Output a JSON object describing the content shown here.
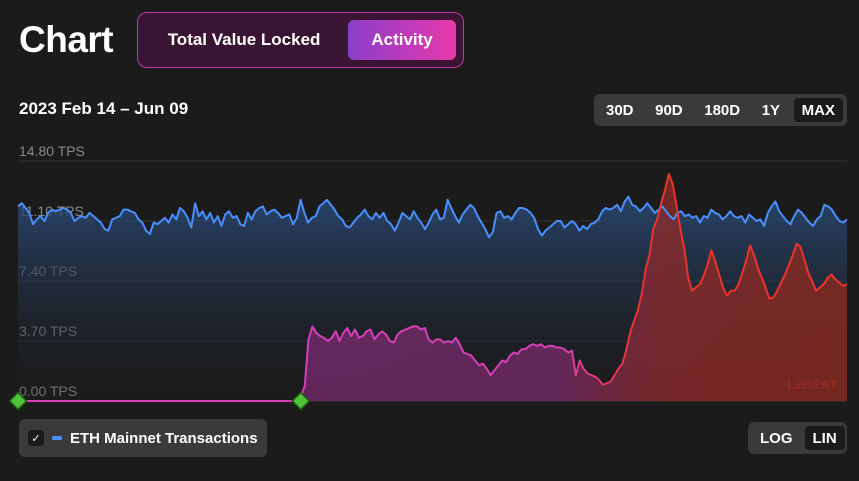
{
  "header": {
    "title": "Chart",
    "modes": {
      "tvl_label": "Total Value Locked",
      "activity_label": "Activity",
      "active": "activity"
    }
  },
  "range": {
    "date_label": "2023 Feb 14 – Jun 09",
    "options": [
      "30D",
      "90D",
      "180D",
      "1Y",
      "MAX"
    ],
    "active": "MAX"
  },
  "legend": {
    "label": "ETH Mainnet Transactions",
    "checked": true,
    "checkmark": "✓"
  },
  "scale": {
    "log_label": "LOG",
    "lin_label": "LIN",
    "active": "LIN"
  },
  "watermark": "L2BEAT",
  "colors": {
    "eth_line": "#4a8fff",
    "l2_line_start": "#d63fb8",
    "l2_line_end": "#e8342a",
    "accent": "#c0389a"
  },
  "chart_data": {
    "type": "area",
    "y_ticks": [
      "14.80 TPS",
      "11.10 TPS",
      "7.40 TPS",
      "3.70 TPS",
      "0.00 TPS"
    ],
    "ylim": [
      0,
      14.8
    ],
    "series": [
      {
        "name": "ETH Mainnet Transactions",
        "values": [
          12.0,
          12.2,
          11.9,
          11.6,
          10.9,
          11.2,
          11.4,
          11.1,
          11.6,
          11.8,
          11.7,
          11.8,
          11.9,
          11.8,
          11.6,
          11.1,
          11.3,
          11.4,
          11.3,
          11.6,
          11.4,
          11.2,
          11.0,
          10.6,
          10.5,
          11.2,
          11.3,
          11.4,
          11.8,
          11.8,
          11.7,
          11.6,
          11.2,
          11.0,
          10.5,
          10.3,
          11.0,
          10.9,
          11.1,
          11.3,
          11.0,
          11.5,
          11.2,
          11.9,
          11.7,
          11.3,
          10.7,
          12.2,
          11.4,
          11.7,
          11.2,
          11.6,
          11.0,
          11.4,
          10.8,
          11.5,
          11.7,
          11.3,
          11.4,
          10.9,
          10.8,
          11.6,
          11.2,
          11.7,
          11.9,
          12.0,
          11.5,
          11.7,
          11.8,
          11.6,
          11.3,
          11.4,
          11.5,
          10.9,
          11.3,
          12.4,
          11.6,
          11.0,
          11.3,
          11.4,
          12.0,
          12.2,
          12.4,
          12.1,
          11.8,
          11.4,
          11.2,
          10.8,
          10.7,
          11.0,
          11.3,
          11.5,
          11.8,
          11.4,
          11.2,
          11.6,
          11.3,
          11.6,
          11.1,
          10.9,
          10.5,
          11.0,
          11.6,
          11.4,
          11.2,
          11.7,
          11.3,
          11.0,
          10.6,
          11.0,
          11.5,
          11.8,
          11.2,
          11.3,
          12.4,
          11.9,
          11.4,
          11.0,
          11.5,
          11.8,
          12.1,
          11.9,
          11.4,
          11.0,
          10.6,
          10.1,
          10.4,
          11.6,
          11.7,
          11.3,
          11.4,
          11.2,
          11.6,
          11.9,
          11.9,
          11.8,
          11.6,
          11.3,
          10.6,
          10.2,
          10.5,
          10.7,
          10.9,
          11.1,
          11.1,
          10.7,
          10.9,
          11.1,
          10.9,
          10.5,
          10.8,
          10.6,
          10.9,
          11.0,
          11.2,
          11.7,
          11.9,
          11.8,
          11.9,
          12.1,
          11.7,
          12.3,
          12.6,
          12.1,
          12.0,
          11.7,
          11.9,
          12.2,
          11.9,
          11.6,
          11.8,
          12.0,
          11.7,
          11.4,
          11.2,
          11.6,
          11.7,
          11.4,
          11.5,
          11.3,
          11.4,
          11.0,
          11.4,
          11.3,
          11.8,
          11.6,
          11.5,
          11.2,
          11.4,
          11.7,
          11.4,
          11.3,
          11.4,
          11.0,
          11.5,
          11.3,
          11.1,
          11.2,
          10.8,
          11.6,
          12.0,
          12.3,
          11.7,
          11.4,
          11.1,
          10.9,
          11.4,
          11.8,
          11.6,
          11.3,
          11.0,
          10.8,
          11.2,
          11.4,
          12.1,
          12.0,
          11.8,
          11.4,
          11.1,
          11.0,
          11.2
        ]
      },
      {
        "name": "",
        "values": [
          0,
          0,
          0,
          0,
          0,
          0,
          0,
          0,
          0,
          0,
          0,
          0,
          0,
          0,
          0,
          0,
          0,
          0,
          0,
          0,
          0,
          0,
          0,
          0,
          0,
          0,
          0,
          0,
          0,
          0,
          0,
          0,
          0,
          0,
          0,
          0,
          0,
          0,
          0,
          0,
          0,
          0,
          0,
          0,
          0,
          0,
          0,
          0,
          0,
          0,
          0,
          0,
          0,
          0,
          0,
          0,
          0,
          0,
          0,
          0,
          0,
          0,
          0,
          0,
          0,
          0,
          0,
          0,
          0,
          0,
          0,
          0,
          0,
          0.3,
          0.9,
          3.8,
          4.6,
          4.2,
          4.0,
          3.9,
          3.7,
          3.9,
          4.3,
          3.7,
          4.2,
          4.5,
          4.0,
          4.4,
          3.9,
          4.0,
          4.3,
          4.4,
          3.8,
          4.1,
          4.3,
          4.1,
          3.7,
          3.6,
          4.1,
          4.3,
          4.4,
          4.5,
          4.6,
          4.6,
          4.4,
          4.5,
          3.8,
          3.6,
          3.8,
          3.8,
          3.6,
          3.7,
          3.6,
          3.9,
          3.5,
          3.0,
          2.9,
          2.8,
          2.5,
          2.2,
          2.3,
          2.0,
          1.6,
          1.9,
          2.2,
          2.5,
          2.4,
          2.8,
          3.0,
          2.9,
          3.2,
          3.2,
          3.4,
          3.5,
          3.4,
          3.5,
          3.3,
          3.4,
          3.4,
          3.3,
          3.3,
          3.2,
          3.0,
          3.1,
          1.6,
          2.5,
          2.0,
          1.7,
          1.6,
          1.5,
          1.3,
          1.0,
          1.1,
          1.2,
          1.6,
          2.0,
          2.3,
          3.1,
          4.2,
          4.9,
          5.6,
          6.6,
          8.1,
          9.0,
          10.6,
          11.2,
          12.2,
          13.0,
          14.0,
          13.4,
          12.0,
          10.6,
          9.4,
          7.6,
          6.8,
          7.0,
          7.2,
          7.7,
          8.4,
          9.3,
          8.6,
          7.8,
          7.0,
          6.5,
          6.8,
          6.8,
          7.2,
          7.9,
          8.7,
          9.6,
          9.0,
          8.2,
          7.6,
          7.0,
          6.3,
          6.4,
          6.8,
          7.3,
          7.8,
          8.4,
          9.0,
          9.7,
          9.5,
          8.7,
          7.9,
          7.4,
          6.8,
          7.0,
          7.2,
          7.6,
          7.8,
          7.5,
          7.3,
          7.1,
          7.2
        ]
      }
    ],
    "milestones": [
      0,
      73
    ]
  }
}
